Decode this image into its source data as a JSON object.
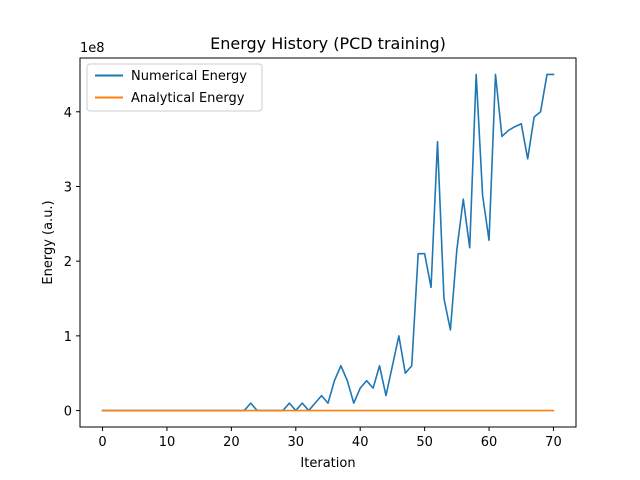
{
  "chart_data": {
    "type": "line",
    "title": "Energy History (PCD training)",
    "xlabel": "Iteration",
    "ylabel": "Energy (a.u.)",
    "y_offset_label": "1e8",
    "xlim": [
      -3.5,
      73.5
    ],
    "ylim": [
      -22000000.0,
      472000000.0
    ],
    "xticks": [
      0,
      10,
      20,
      30,
      40,
      50,
      60,
      70
    ],
    "xtick_labels": [
      "0",
      "10",
      "20",
      "30",
      "40",
      "50",
      "60",
      "70"
    ],
    "yticks": [
      0,
      100000000,
      200000000,
      300000000,
      400000000
    ],
    "ytick_labels": [
      "0",
      "1",
      "2",
      "3",
      "4"
    ],
    "grid": false,
    "legend_position": "upper-left",
    "series": [
      {
        "name": "Numerical Energy",
        "color": "#1f77b4",
        "x": [
          0,
          1,
          2,
          3,
          4,
          5,
          6,
          7,
          8,
          9,
          10,
          11,
          12,
          13,
          14,
          15,
          16,
          17,
          18,
          19,
          20,
          21,
          22,
          23,
          24,
          25,
          26,
          27,
          28,
          29,
          30,
          31,
          32,
          33,
          34,
          35,
          36,
          37,
          38,
          39,
          40,
          41,
          42,
          43,
          44,
          45,
          46,
          47,
          48,
          49,
          50,
          51,
          52,
          53,
          54,
          55,
          56,
          57,
          58,
          59,
          60,
          61,
          62,
          63,
          64,
          65,
          66,
          67,
          68,
          69,
          70
        ],
        "values": [
          0,
          0,
          0,
          0,
          0,
          0,
          0,
          0,
          0,
          0,
          0,
          0,
          0,
          0,
          0,
          0,
          0,
          0,
          0,
          0,
          0,
          0,
          0,
          10000000,
          0,
          0,
          0,
          0,
          0,
          10000000,
          0,
          10000000,
          0,
          10000000,
          20000000,
          10000000,
          40000000,
          60000000,
          40000000,
          10000000,
          30000000,
          40000000,
          30000000,
          60000000,
          20000000,
          60000000,
          100000000,
          50000000,
          60000000,
          210000000,
          210000000,
          165000000,
          360000000,
          150000000,
          108000000,
          215000000,
          283000000,
          218000000,
          450000000,
          288000000,
          228000000,
          450000000,
          367000000,
          375000000,
          380000000,
          384000000,
          337000000,
          393000000,
          400000000,
          450000000,
          450000000
        ]
      },
      {
        "name": "Analytical Energy",
        "color": "#ff7f0e",
        "x": [
          0,
          70
        ],
        "values": [
          0,
          0
        ]
      }
    ]
  }
}
